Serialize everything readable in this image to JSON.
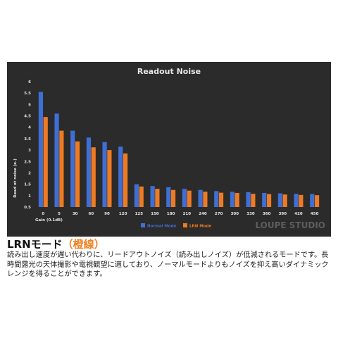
{
  "chart_data": {
    "type": "bar",
    "title": "Readout Noise",
    "xlabel": "Gain (0.1dB)",
    "ylabel": "Read ot noise (e-)",
    "ylim": [
      0.5,
      6
    ],
    "yticks": [
      0.5,
      1,
      1.5,
      2,
      2.5,
      3,
      3.5,
      4,
      4.5,
      5,
      5.5,
      6
    ],
    "grid": false,
    "legend": "bottom",
    "categories": [
      "0",
      "5",
      "30",
      "60",
      "90",
      "120",
      "125",
      "150",
      "180",
      "210",
      "240",
      "270",
      "300",
      "330",
      "360",
      "390",
      "420",
      "450"
    ],
    "series": [
      {
        "name": "Normal Mode",
        "color": "#3f6fd4",
        "values": [
          5.55,
          4.6,
          3.85,
          3.55,
          3.35,
          3.15,
          1.5,
          1.42,
          1.37,
          1.3,
          1.25,
          1.2,
          1.17,
          1.15,
          1.12,
          1.1,
          1.08,
          1.07
        ]
      },
      {
        "name": "LRN Mode",
        "color": "#f07a20",
        "values": [
          4.45,
          3.85,
          3.38,
          3.12,
          3.0,
          2.85,
          1.4,
          1.3,
          1.25,
          1.22,
          1.17,
          1.13,
          1.12,
          1.08,
          1.07,
          1.05,
          1.03,
          1.02
        ]
      }
    ],
    "colors": {
      "background": "#2b2b2b",
      "text": "#e6e6e6"
    }
  },
  "watermark": "LOUPE STUDIO",
  "heading": {
    "main": "LRNモード",
    "accent": "（橙線）"
  },
  "description": "読み出し速度が遅い代わりに、リードアウトノイズ（読み出しノイズ）が低減されるモードです。長時間露光の天体撮影や電視観望に適しており、ノーマルモードよりもノイズを抑え高いダイナミックレンジを得ることができます。"
}
